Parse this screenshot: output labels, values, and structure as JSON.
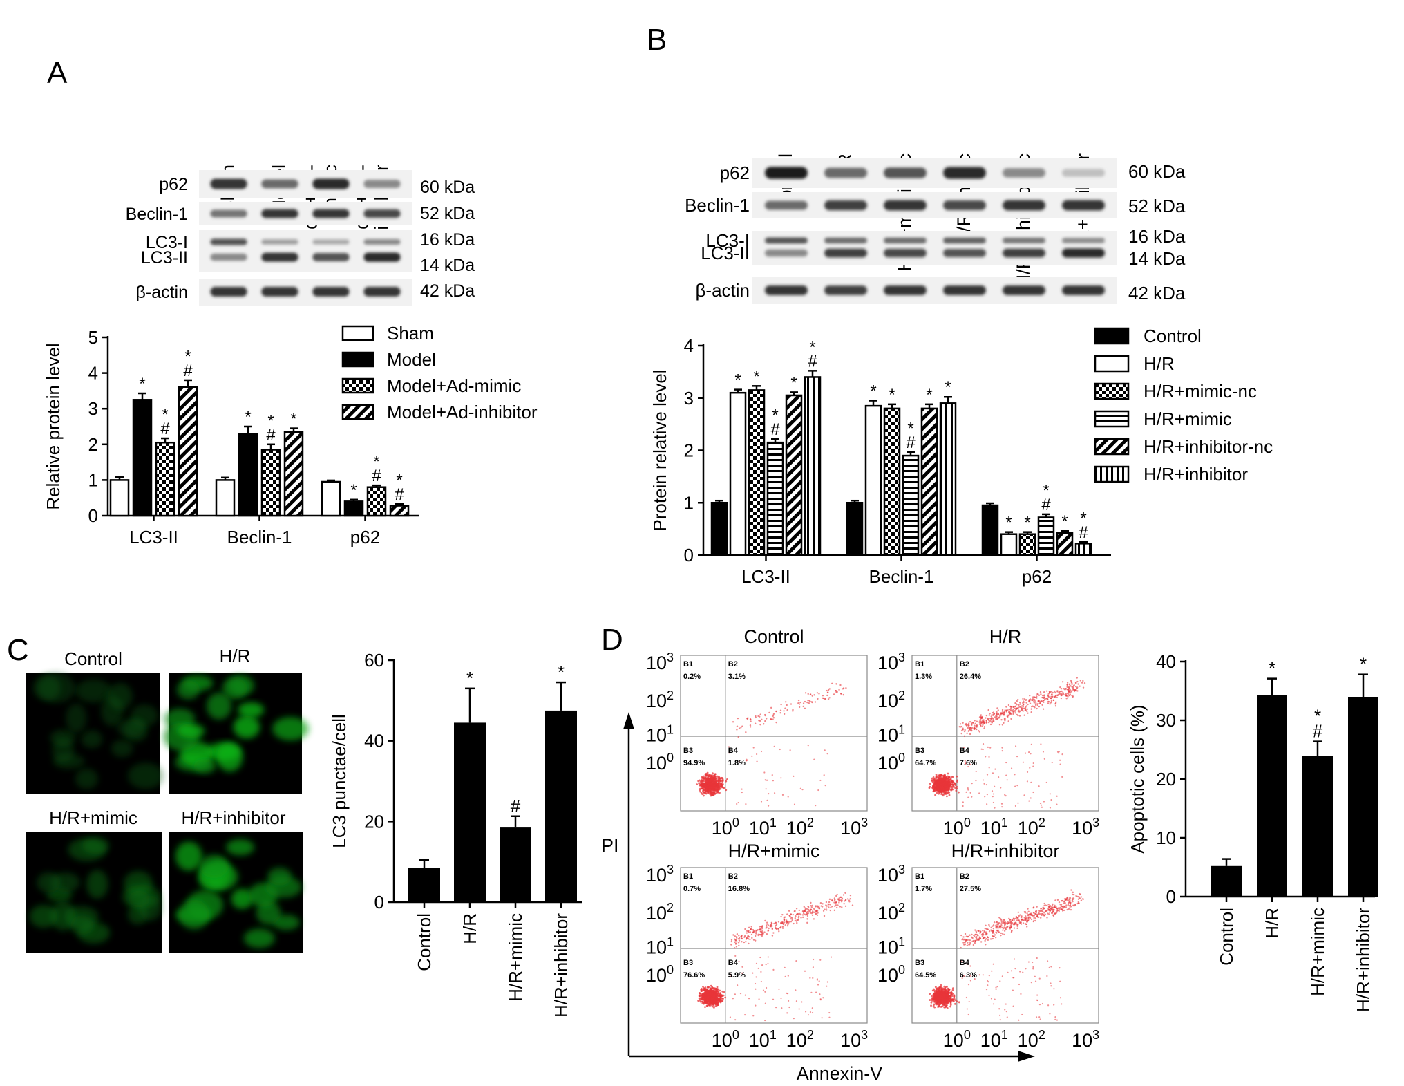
{
  "panels": {
    "A": "A",
    "B": "B",
    "C": "C",
    "D": "D"
  },
  "blot_A": {
    "lanes": [
      "Sham",
      "Model",
      "Model+Ad-\nmimic",
      "Model+Ad-\ninhibitor"
    ],
    "bands": [
      "p62",
      "Beclin-1",
      "LC3-I",
      "LC3-II",
      "β-actin"
    ],
    "kda": [
      "60 kDa",
      "52 kDa",
      "16 kDa",
      "14 kDa",
      "42 kDa"
    ],
    "intensity": {
      "p62": [
        0.85,
        0.6,
        0.9,
        0.45
      ],
      "Beclin-1": [
        0.55,
        0.85,
        0.85,
        0.75
      ],
      "LC3-I": [
        0.7,
        0.35,
        0.3,
        0.45
      ],
      "LC3-II": [
        0.45,
        0.85,
        0.7,
        0.9
      ],
      "β-actin": [
        0.85,
        0.85,
        0.85,
        0.85
      ]
    }
  },
  "blot_B": {
    "lanes": [
      "Control",
      "H/R",
      "H/R+mimic-nc",
      "H/R+mimic",
      "H/R+inhibitor-nc",
      "H/R+inhibitor"
    ],
    "bands": [
      "p62",
      "Beclin-1",
      "LC3-I",
      "LC3-II",
      "β-actin"
    ],
    "kda": [
      "60 kDa",
      "52 kDa",
      "16 kDa",
      "14 kDa",
      "42 kDa"
    ],
    "intensity": {
      "p62": [
        0.95,
        0.6,
        0.7,
        0.9,
        0.45,
        0.2
      ],
      "Beclin-1": [
        0.6,
        0.8,
        0.85,
        0.75,
        0.85,
        0.85
      ],
      "LC3-I": [
        0.7,
        0.6,
        0.6,
        0.65,
        0.55,
        0.45
      ],
      "LC3-II": [
        0.45,
        0.8,
        0.75,
        0.7,
        0.8,
        0.9
      ],
      "β-actin": [
        0.85,
        0.8,
        0.85,
        0.85,
        0.85,
        0.85
      ]
    }
  },
  "chart_data": [
    {
      "panel": "A",
      "type": "bar",
      "categories": [
        "LC3-II",
        "Beclin-1",
        "p62"
      ],
      "ylabel": "Relative protein level",
      "ylim": [
        0,
        5
      ],
      "yticks": [
        0,
        1,
        2,
        3,
        4,
        5
      ],
      "legend_placement": "top-right",
      "series": [
        {
          "name": "Sham",
          "pattern": "open",
          "values": [
            1.0,
            1.0,
            0.95
          ],
          "errors": [
            0.08,
            0.07,
            0.04
          ],
          "marks": [
            "",
            "",
            ""
          ]
        },
        {
          "name": "Model",
          "pattern": "solid",
          "values": [
            3.25,
            2.3,
            0.4
          ],
          "errors": [
            0.18,
            0.2,
            0.05
          ],
          "marks": [
            "*",
            "*",
            "*"
          ]
        },
        {
          "name": "Model+Ad-mimic",
          "pattern": "checker",
          "values": [
            2.05,
            1.85,
            0.8
          ],
          "errors": [
            0.12,
            0.15,
            0.05
          ],
          "marks": [
            "*\n#",
            "*\n#",
            "*\n#"
          ]
        },
        {
          "name": "Model+Ad-inhibitor",
          "pattern": "diag",
          "values": [
            3.6,
            2.35,
            0.28
          ],
          "errors": [
            0.2,
            0.1,
            0.05
          ],
          "marks": [
            "*\n#",
            "*",
            "*\n#"
          ]
        }
      ]
    },
    {
      "panel": "B",
      "type": "bar",
      "categories": [
        "LC3-II",
        "Beclin-1",
        "p62"
      ],
      "ylabel": "Protein relative level",
      "ylim": [
        0,
        4
      ],
      "yticks": [
        0,
        1,
        2,
        3,
        4
      ],
      "legend_placement": "top-right",
      "series": [
        {
          "name": "Control",
          "pattern": "solid",
          "values": [
            1.0,
            1.0,
            0.95
          ],
          "errors": [
            0.04,
            0.04,
            0.04
          ],
          "marks": [
            "",
            "",
            ""
          ]
        },
        {
          "name": "H/R",
          "pattern": "open",
          "values": [
            3.1,
            2.85,
            0.4
          ],
          "errors": [
            0.06,
            0.1,
            0.04
          ],
          "marks": [
            "*",
            "*",
            "*"
          ]
        },
        {
          "name": "H/R+mimic-nc",
          "pattern": "checker",
          "values": [
            3.15,
            2.8,
            0.4
          ],
          "errors": [
            0.08,
            0.08,
            0.04
          ],
          "marks": [
            "*",
            "*",
            "*"
          ]
        },
        {
          "name": "H/R+mimic",
          "pattern": "hlines",
          "values": [
            2.15,
            1.9,
            0.72
          ],
          "errors": [
            0.07,
            0.07,
            0.06
          ],
          "marks": [
            "*\n#",
            "*\n#",
            "*\n#"
          ]
        },
        {
          "name": "H/R+inhibitor-nc",
          "pattern": "diag",
          "values": [
            3.05,
            2.8,
            0.42
          ],
          "errors": [
            0.06,
            0.08,
            0.04
          ],
          "marks": [
            "*",
            "*",
            "*"
          ]
        },
        {
          "name": "H/R+inhibitor",
          "pattern": "vlines",
          "values": [
            3.4,
            2.9,
            0.22
          ],
          "errors": [
            0.12,
            0.12,
            0.03
          ],
          "marks": [
            "*\n#",
            "*",
            "*\n#"
          ]
        }
      ]
    },
    {
      "panel": "C",
      "type": "bar",
      "categories": [
        "Control",
        "H/R",
        "H/R+mimic",
        "H/R+inhibitor"
      ],
      "ylabel": "LC3 punctae/cell",
      "ylim": [
        0,
        60
      ],
      "yticks": [
        0,
        20,
        40,
        60
      ],
      "values": [
        8.5,
        44.5,
        18.5,
        47.5
      ],
      "errors": [
        2.0,
        8.5,
        2.8,
        7.0
      ],
      "marks": [
        "",
        "*",
        "#",
        "*"
      ]
    },
    {
      "panel": "D",
      "type": "bar",
      "categories": [
        "Control",
        "H/R",
        "H/R+mimic",
        "H/R+inhibitor"
      ],
      "ylabel": "Apoptotic cells (%)",
      "ylim": [
        0,
        40
      ],
      "yticks": [
        0,
        10,
        20,
        30,
        40
      ],
      "values": [
        5.2,
        34.3,
        24.0,
        34.0
      ],
      "errors": [
        1.2,
        2.8,
        2.4,
        3.8
      ],
      "marks": [
        "",
        "*",
        "*\n#",
        "*"
      ]
    }
  ],
  "micrographs": {
    "labels": [
      "Control",
      "H/R",
      "H/R+mimic",
      "H/R+inhibitor"
    ],
    "brightness": [
      0.25,
      0.85,
      0.4,
      0.8
    ]
  },
  "flow": {
    "titles": [
      "Control",
      "H/R",
      "H/R+mimic",
      "H/R+inhibitor"
    ],
    "quadrants": [
      {
        "B1": "0.2%",
        "B2": "3.1%",
        "B3": "94.9%",
        "B4": "1.8%"
      },
      {
        "B1": "1.3%",
        "B2": "26.4%",
        "B3": "64.7%",
        "B4": "7.6%"
      },
      {
        "B1": "0.7%",
        "B2": "16.8%",
        "B3": "76.6%",
        "B4": "5.9%"
      },
      {
        "B1": "1.7%",
        "B2": "27.5%",
        "B3": "64.5%",
        "B4": "6.3%"
      }
    ],
    "quadrant_names": [
      "B1",
      "B2",
      "B3",
      "B4"
    ],
    "ticks": [
      "0",
      "1",
      "2",
      "3"
    ],
    "tick_base": "10",
    "xlabel": "Annexin-V",
    "ylabel": "PI",
    "colors": {
      "dots": "#e8353a"
    }
  }
}
